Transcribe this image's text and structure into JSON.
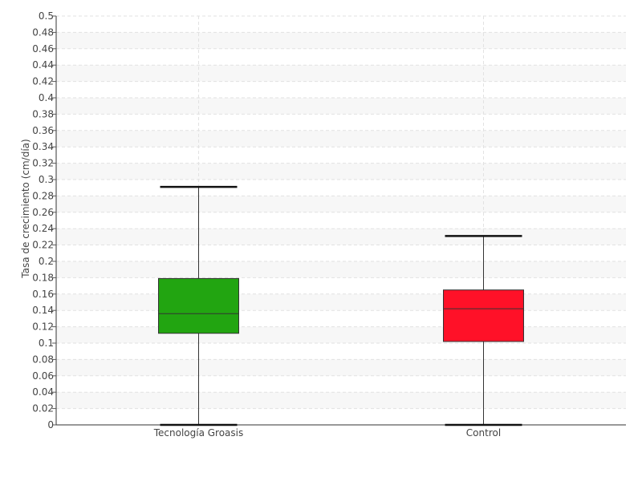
{
  "chart_data": {
    "type": "boxplot",
    "title": "",
    "xlabel": "",
    "ylabel": "Tasa de crecimiento (cm/día)",
    "ylim": [
      0,
      0.5
    ],
    "ytick_step": 0.02,
    "grid": true,
    "categories": [
      "Tecnología Groasis",
      "Control"
    ],
    "boxes": [
      {
        "category": "Tecnología Groasis",
        "min": 0.0,
        "q1": 0.112,
        "median": 0.136,
        "q3": 0.179,
        "max": 0.291,
        "color": "#22a511"
      },
      {
        "category": "Control",
        "min": 0.0,
        "q1": 0.102,
        "median": 0.142,
        "q3": 0.165,
        "max": 0.231,
        "color": "#ff1128"
      }
    ]
  }
}
